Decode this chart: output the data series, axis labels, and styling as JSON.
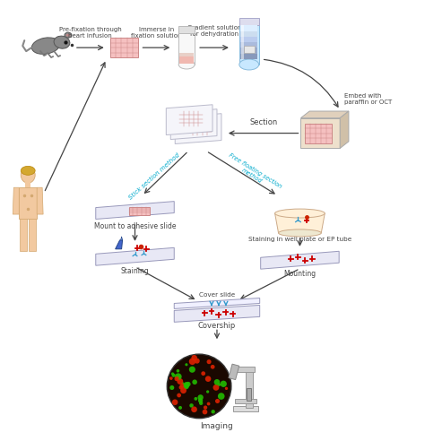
{
  "bg_color": "#ffffff",
  "text_color": "#444444",
  "cyan_color": "#00AACC",
  "arrow_color": "#444444",
  "steps": [
    "Pre-fixation through\nheart infusion",
    "Immerse in\nfixation solution",
    "Gradient solution\nfor dehydration",
    "Embed with\nparaffin or OCT",
    "Section",
    "Stick section method",
    "Free floating section\nmethod",
    "Mount to adhesive slide",
    "Staining in well plate or EP tube",
    "Staining",
    "Mounting",
    "Covership",
    "Imaging"
  ]
}
